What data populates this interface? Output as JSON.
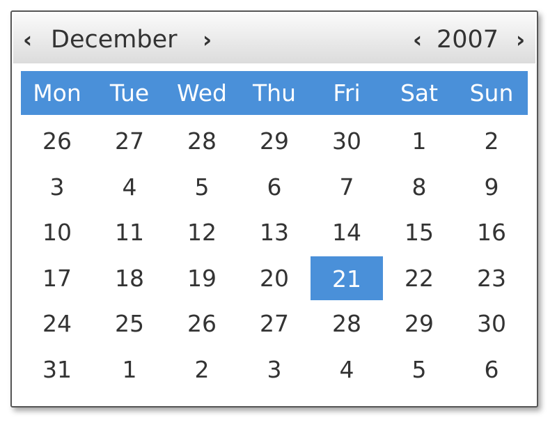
{
  "header": {
    "month": "December",
    "year": "2007"
  },
  "weekdays": [
    "Mon",
    "Tue",
    "Wed",
    "Thu",
    "Fri",
    "Sat",
    "Sun"
  ],
  "weeks": [
    [
      "26",
      "27",
      "28",
      "29",
      "30",
      "1",
      "2"
    ],
    [
      "3",
      "4",
      "5",
      "6",
      "7",
      "8",
      "9"
    ],
    [
      "10",
      "11",
      "12",
      "13",
      "14",
      "15",
      "16"
    ],
    [
      "17",
      "18",
      "19",
      "20",
      "21",
      "22",
      "23"
    ],
    [
      "24",
      "25",
      "26",
      "27",
      "28",
      "29",
      "30"
    ],
    [
      "31",
      "1",
      "2",
      "3",
      "4",
      "5",
      "6"
    ]
  ],
  "selected_day": "21",
  "colors": {
    "accent": "#4a90d9",
    "text": "#333333"
  }
}
